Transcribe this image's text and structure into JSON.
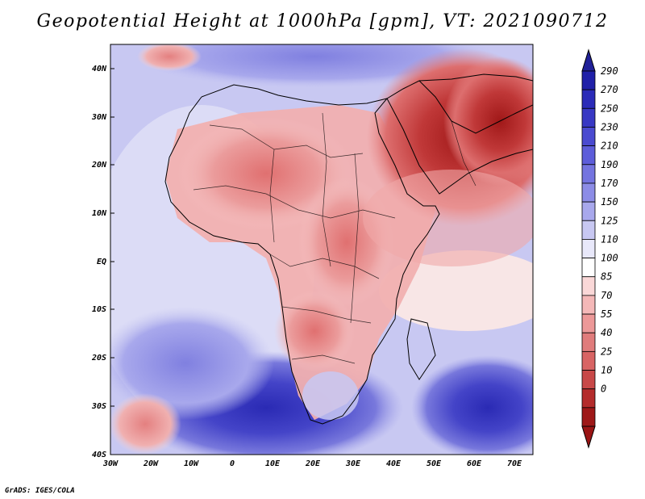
{
  "title": "Geopotential Height at 1000hPa [gpm], VT: 2021090712",
  "credit": "GrADS: IGES/COLA",
  "map": {
    "region": "Africa and Middle East",
    "variable": "Geopotential Height at 1000hPa",
    "units": "gpm",
    "lat_labels": [
      "40N",
      "30N",
      "20N",
      "10N",
      "EQ",
      "10S",
      "20S",
      "30S",
      "40S"
    ],
    "lon_labels": [
      "30W",
      "20W",
      "10W",
      "0",
      "10E",
      "20E",
      "30E",
      "40E",
      "50E",
      "60E",
      "70E"
    ]
  },
  "colorbar": {
    "labels": [
      "290",
      "270",
      "250",
      "230",
      "210",
      "190",
      "170",
      "150",
      "125",
      "110",
      "100",
      "85",
      "70",
      "55",
      "40",
      "25",
      "10",
      "0"
    ],
    "colors": [
      "#2020a8",
      "#2b2bb8",
      "#3838c4",
      "#4a4ad0",
      "#5d5dda",
      "#7474e0",
      "#8c8ce6",
      "#a8a8ec",
      "#c8c8f2",
      "#e8e8fa",
      "#ffffff",
      "#fad8d8",
      "#f4b8b8",
      "#ec9898",
      "#e07c7c",
      "#d86464",
      "#c84848",
      "#b42c2c",
      "#9e1818"
    ]
  }
}
